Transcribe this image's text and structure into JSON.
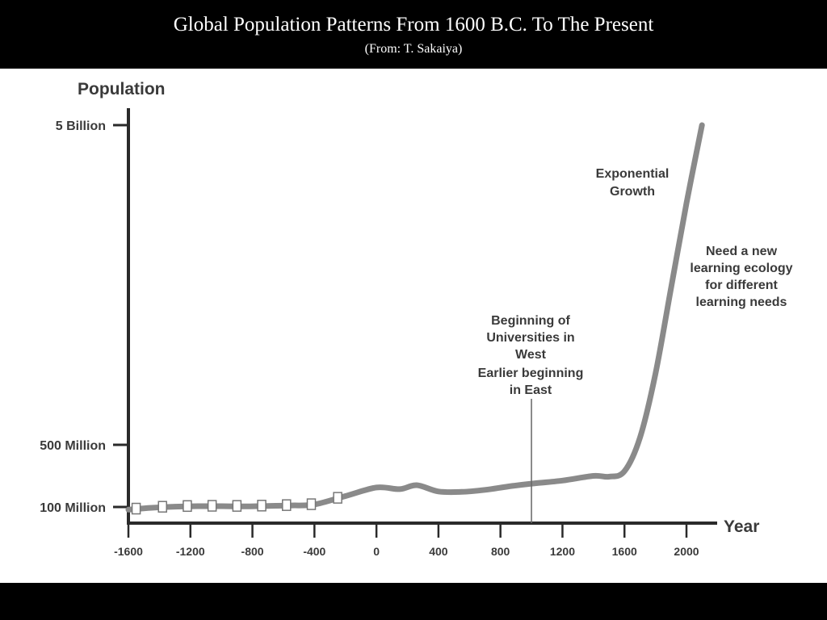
{
  "slide": {
    "title": "Global Population Patterns From 1600 B.C. To The Present",
    "subtitle": "(From: T. Sakaiya)"
  },
  "chart_data": {
    "type": "line",
    "ylabel": "Population",
    "xlabel": "Year",
    "y_ticks": [
      {
        "label": "100 Million",
        "value": 100000000
      },
      {
        "label": "500 Million",
        "value": 500000000
      },
      {
        "label": "5 Billion",
        "value": 5000000000
      }
    ],
    "x_ticks": [
      "-1600",
      "-1200",
      "-800",
      "-400",
      "0",
      "400",
      "800",
      "1200",
      "1600",
      "2000"
    ],
    "xlim": [
      -1600,
      2000
    ],
    "y_scale": "nonlinear (100 Million, 500 Million, 5 Billion marks)",
    "series": [
      {
        "color": "#8a8a8a",
        "x": [
          -1600,
          -1450,
          -1300,
          -1150,
          -1000,
          -850,
          -700,
          -550,
          -400,
          -200,
          0,
          150,
          260,
          400,
          550,
          700,
          850,
          1000,
          1200,
          1400,
          1500,
          1600,
          1700,
          1800,
          1900,
          2000,
          2100
        ],
        "y": [
          90000000,
          97000000,
          102000000,
          105000000,
          105000000,
          104000000,
          107000000,
          110000000,
          116000000,
          170000000,
          225000000,
          215000000,
          240000000,
          200000000,
          197000000,
          210000000,
          232000000,
          250000000,
          270000000,
          300000000,
          295000000,
          330000000,
          600000000,
          1500000000,
          2700000000,
          3900000000,
          5000000000
        ]
      }
    ],
    "markers": {
      "shape": "square",
      "x": [
        -1550,
        -1380,
        -1220,
        -1060,
        -900,
        -740,
        -580,
        -420,
        -250
      ]
    },
    "annotations": [
      {
        "id": "universities",
        "lines": [
          "Beginning of",
          "Universities in",
          "West",
          "Earlier beginning",
          "in East"
        ],
        "x": 1000
      },
      {
        "id": "exponential",
        "lines": [
          "Exponential",
          "Growth"
        ]
      },
      {
        "id": "new-ecology",
        "lines": [
          "Need a new",
          "learning ecology",
          "for different",
          "learning needs"
        ]
      }
    ]
  }
}
